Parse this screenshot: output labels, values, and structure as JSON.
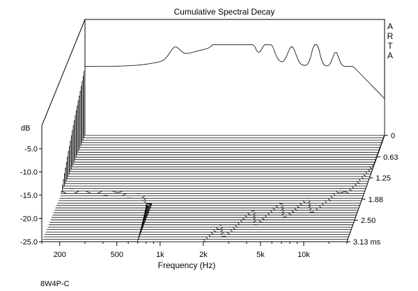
{
  "chart_data": {
    "type": "waterfall",
    "title": "Cumulative Spectral Decay",
    "watermark": "ARTA",
    "ylabel": "dB",
    "xlabel": "Frequency (Hz)",
    "zlabel_unit": "ms",
    "footer": "8W4P-C",
    "y_ticks": [
      "-5.0",
      "-10.0",
      "-15.0",
      "-20.0",
      "-25.0"
    ],
    "ylim": [
      -25,
      0
    ],
    "x_ticks": [
      {
        "label": "200",
        "hz": 200
      },
      {
        "label": "500",
        "hz": 500
      },
      {
        "label": "1k",
        "hz": 1000
      },
      {
        "label": "2k",
        "hz": 2000
      },
      {
        "label": "5k",
        "hz": 5000
      },
      {
        "label": "10k",
        "hz": 10000
      }
    ],
    "xlim_hz": [
      150,
      20000
    ],
    "time_ticks": [
      {
        "label": "0",
        "ms": 0
      },
      {
        "label": "0.63",
        "ms": 0.63
      },
      {
        "label": "1.25",
        "ms": 1.25
      },
      {
        "label": "1.88",
        "ms": 1.88
      },
      {
        "label": "2.50",
        "ms": 2.5
      },
      {
        "label": "3.13 ms",
        "ms": 3.13
      }
    ],
    "time_range_ms": [
      0,
      3.13
    ],
    "slice_count": 45,
    "grid": false,
    "colors": {
      "line": "#000000",
      "fill": "#ffffff",
      "background": "#ffffff"
    }
  }
}
